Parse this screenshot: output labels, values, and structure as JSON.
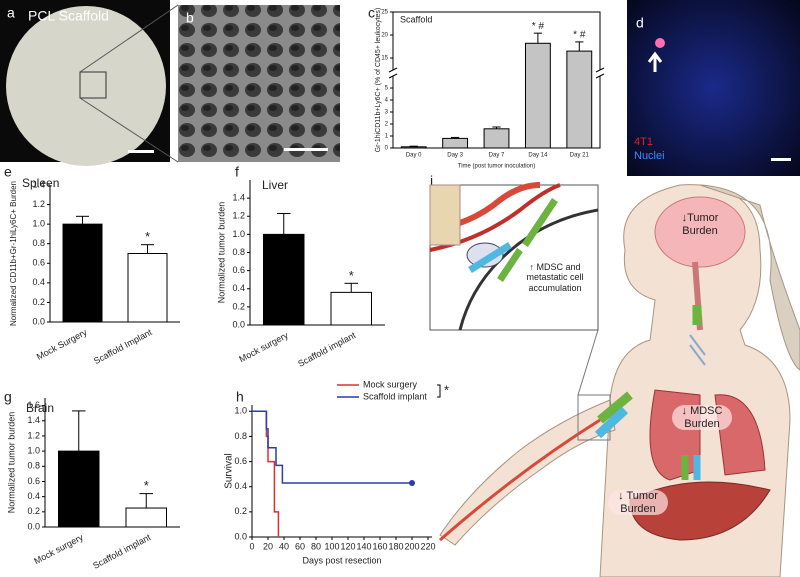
{
  "panel_labels": [
    "a",
    "b",
    "c",
    "d",
    "e",
    "f",
    "g",
    "h",
    "i"
  ],
  "image_a": {
    "label": "PCL Scaffold"
  },
  "image_d": {
    "labels": [
      "4T1",
      "Nuclei"
    ]
  },
  "diagram_i": {
    "labels": [
      "↓Tumor Burden",
      "↑ MDSC and metastatic cell accumulation",
      "↓ MDSC Burden",
      "↓ Tumor Burden"
    ]
  },
  "chart_data": [
    {
      "type": "bar",
      "title": "Scaffold",
      "categories": [
        "Day 0",
        "Day 3",
        "Day 7",
        "Day 14",
        "Day 21"
      ],
      "values": [
        0.1,
        0.8,
        1.6,
        18.2,
        16.5
      ],
      "errors": [
        0.05,
        0.08,
        0.15,
        2.2,
        2.0
      ],
      "bar_annotations": [
        null,
        null,
        null,
        "* #",
        "* #"
      ],
      "color": "#c4c4c4",
      "ylim": [
        0,
        25
      ],
      "axis_break": [
        5,
        15
      ],
      "yticks": [
        0,
        1,
        2,
        3,
        4,
        5,
        15,
        20,
        25
      ],
      "xlabel": "Time (post tumor inoculation)",
      "ylabel": "Gr-1hiCD11b+Ly6C+ (% of CD45+ leukocytes)"
    },
    {
      "type": "bar",
      "title": "Spleen",
      "categories": [
        "Mock Surgery",
        "Scaffold Implant"
      ],
      "values": [
        1.0,
        0.7
      ],
      "errors": [
        0.08,
        0.09
      ],
      "bar_annotations": [
        null,
        "*"
      ],
      "colors": [
        "#000000",
        "#ffffff"
      ],
      "ylim": [
        0,
        1.4
      ],
      "yticks": [
        {
          "value": 0,
          "label": "0.0"
        },
        0.2,
        0.4,
        0.6,
        0.8,
        {
          "value": 1,
          "label": "1.0"
        },
        1.2,
        1.4
      ],
      "ylabel": "Normalized CD11b+Gr-1hiLy6C+ Burden"
    },
    {
      "type": "bar",
      "title": "Liver",
      "categories": [
        "Mock surgery",
        "Scaffold implant"
      ],
      "values": [
        1.0,
        0.36
      ],
      "errors": [
        0.23,
        0.1
      ],
      "bar_annotations": [
        null,
        "*"
      ],
      "colors": [
        "#000000",
        "#ffffff"
      ],
      "ylim": [
        0,
        1.6
      ],
      "yticks": [
        {
          "value": 0,
          "label": "0.0"
        },
        0.2,
        0.4,
        0.6,
        0.8,
        {
          "value": 1,
          "label": "1.0"
        },
        1.2,
        1.4
      ],
      "ylabel": "Normalized tumor burden"
    },
    {
      "type": "bar",
      "title": "Brain",
      "categories": [
        "Mock surgery",
        "Scaffold implant"
      ],
      "values": [
        1.0,
        0.25
      ],
      "errors": [
        0.53,
        0.19
      ],
      "bar_annotations": [
        null,
        "*"
      ],
      "colors": [
        "#000000",
        "#ffffff"
      ],
      "ylim": [
        0,
        1.7
      ],
      "yticks": [
        {
          "value": 0,
          "label": "0.0"
        },
        0.2,
        0.4,
        0.6,
        0.8,
        {
          "value": 1,
          "label": "1.0"
        },
        1.2,
        1.4,
        1.6
      ],
      "ylabel": "Normalized tumor burden"
    },
    {
      "type": "line",
      "xlabel": "Days post resection",
      "ylabel": "Survival",
      "legend": "upper right",
      "legend_annotation": "*",
      "series": [
        {
          "name": "Mock surgery",
          "color": "#e0302a",
          "x": [
            0,
            18,
            18,
            20,
            20,
            28,
            28,
            33,
            33
          ],
          "values": [
            1,
            1,
            0.8,
            0.8,
            0.6,
            0.6,
            0.2,
            0.2,
            0
          ]
        },
        {
          "name": "Scaffold implant",
          "color": "#2a3cb0",
          "x": [
            0,
            18,
            18,
            20,
            20,
            30,
            30,
            38,
            38,
            200
          ],
          "values": [
            1,
            1,
            0.86,
            0.86,
            0.71,
            0.71,
            0.57,
            0.57,
            0.43,
            0.43
          ],
          "end_marker": true
        }
      ],
      "xlim": [
        0,
        225
      ],
      "xticks": [
        0,
        20,
        40,
        60,
        80,
        100,
        120,
        140,
        160,
        180,
        200,
        220
      ],
      "ylim": [
        0,
        1.05
      ],
      "yticks": [
        {
          "value": 0,
          "label": "0.0"
        },
        0.2,
        0.4,
        0.6,
        0.8,
        {
          "value": 1,
          "label": "1.0"
        }
      ]
    }
  ]
}
